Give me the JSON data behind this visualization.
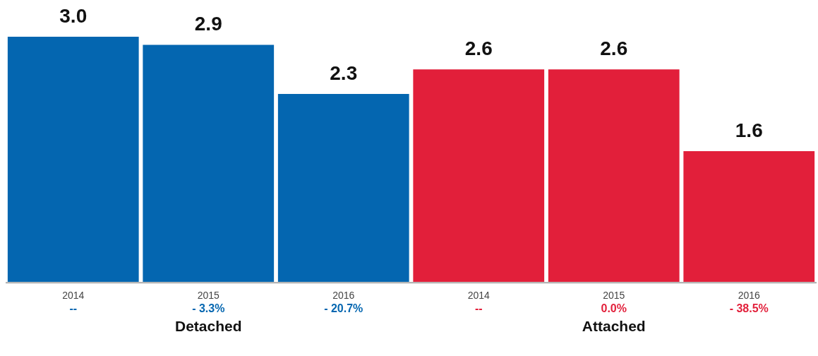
{
  "chart_data": {
    "type": "bar",
    "categories": [
      "2014",
      "2015",
      "2016",
      "2014",
      "2015",
      "2016"
    ],
    "series": [
      {
        "name": "Detached",
        "color": "#0466b0",
        "values": [
          3.0,
          2.9,
          2.3,
          null,
          null,
          null
        ],
        "value_labels": [
          "3.0",
          "2.9",
          "2.3",
          null,
          null,
          null
        ]
      },
      {
        "name": "Attached",
        "color": "#e21f3a",
        "values": [
          null,
          null,
          null,
          2.6,
          2.6,
          1.6
        ],
        "value_labels": [
          null,
          null,
          null,
          "2.6",
          "2.6",
          "1.6"
        ]
      }
    ],
    "annotations": [
      "--",
      "- 3.3%",
      "- 20.7%",
      "--",
      "0.0%",
      "- 38.5%"
    ],
    "grid": false,
    "legend": false,
    "tick_labels": "x"
  }
}
